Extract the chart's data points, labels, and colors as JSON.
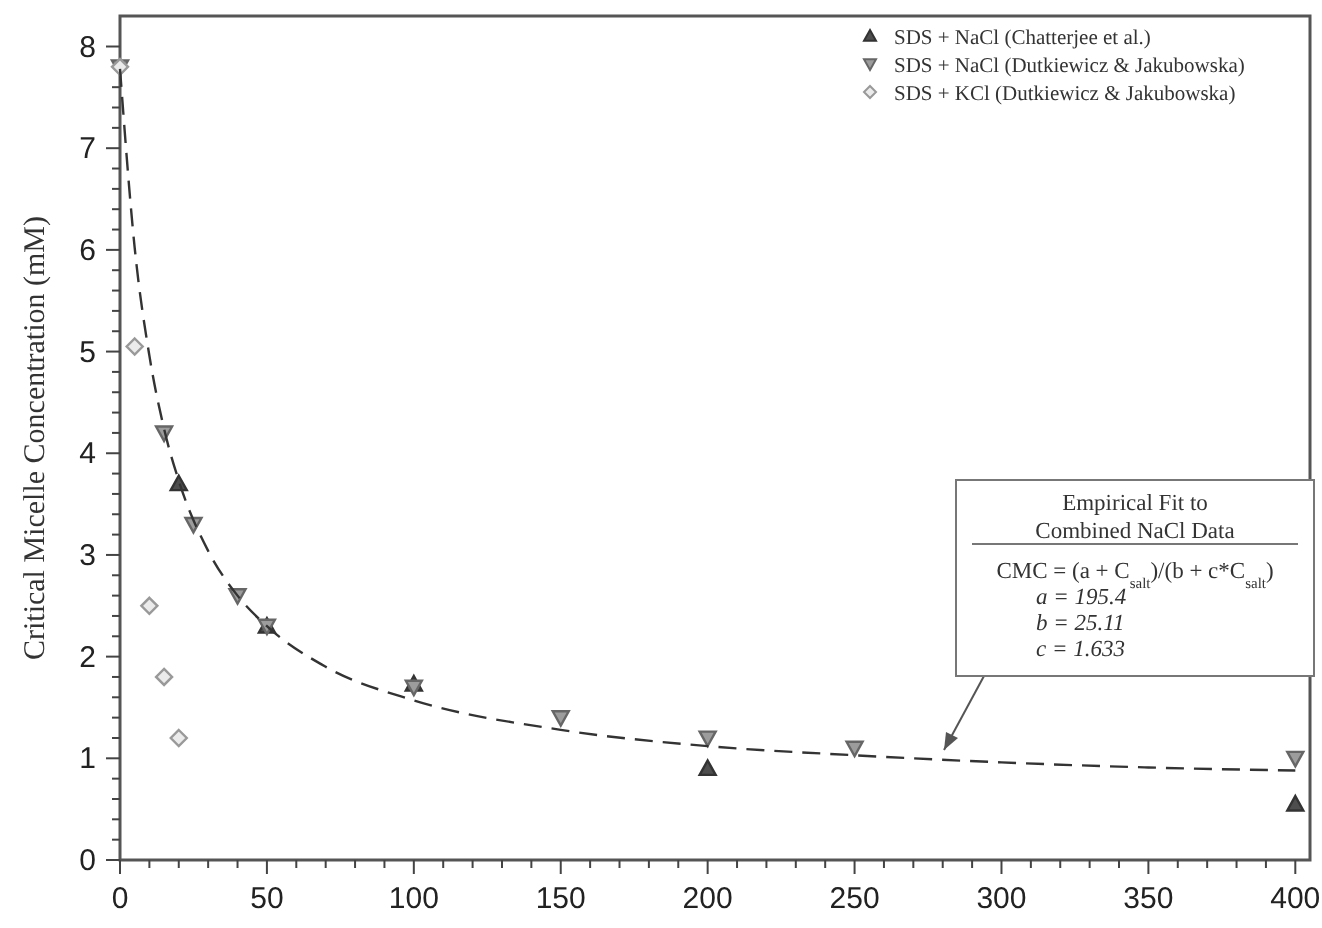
{
  "chart_data": {
    "type": "scatter",
    "ylabel": "Critical Micelle Concentration (mM)",
    "xlim": [
      0,
      405
    ],
    "ylim": [
      0,
      8.3
    ],
    "xticks": [
      0,
      {
        "value": 10,
        "label": null
      },
      {
        "value": 20,
        "label": null
      },
      {
        "value": 30,
        "label": null
      },
      {
        "value": 40,
        "label": null
      },
      50,
      {
        "value": 60,
        "label": null
      },
      {
        "value": 70,
        "label": null
      },
      {
        "value": 80,
        "label": null
      },
      {
        "value": 90,
        "label": null
      },
      100,
      {
        "value": 110,
        "label": null
      },
      {
        "value": 120,
        "label": null
      },
      {
        "value": 130,
        "label": null
      },
      {
        "value": 140,
        "label": null
      },
      150,
      {
        "value": 160,
        "label": null
      },
      {
        "value": 170,
        "label": null
      },
      {
        "value": 180,
        "label": null
      },
      {
        "value": 190,
        "label": null
      },
      200,
      {
        "value": 210,
        "label": null
      },
      {
        "value": 220,
        "label": null
      },
      {
        "value": 230,
        "label": null
      },
      {
        "value": 240,
        "label": null
      },
      250,
      {
        "value": 260,
        "label": null
      },
      {
        "value": 270,
        "label": null
      },
      {
        "value": 280,
        "label": null
      },
      {
        "value": 290,
        "label": null
      },
      300,
      {
        "value": 310,
        "label": null
      },
      {
        "value": 320,
        "label": null
      },
      {
        "value": 330,
        "label": null
      },
      {
        "value": 340,
        "label": null
      },
      350,
      {
        "value": 360,
        "label": null
      },
      {
        "value": 370,
        "label": null
      },
      {
        "value": 380,
        "label": null
      },
      {
        "value": 390,
        "label": null
      },
      400
    ],
    "yticks": [
      0,
      {
        "value": 0.2,
        "label": null
      },
      {
        "value": 0.4,
        "label": null
      },
      {
        "value": 0.6,
        "label": null
      },
      {
        "value": 0.8,
        "label": null
      },
      1,
      {
        "value": 1.2,
        "label": null
      },
      {
        "value": 1.4,
        "label": null
      },
      {
        "value": 1.6,
        "label": null
      },
      {
        "value": 1.8,
        "label": null
      },
      2,
      {
        "value": 2.2,
        "label": null
      },
      {
        "value": 2.4,
        "label": null
      },
      {
        "value": 2.6,
        "label": null
      },
      {
        "value": 2.8,
        "label": null
      },
      3,
      {
        "value": 3.2,
        "label": null
      },
      {
        "value": 3.4,
        "label": null
      },
      {
        "value": 3.6,
        "label": null
      },
      {
        "value": 3.8,
        "label": null
      },
      4,
      {
        "value": 4.2,
        "label": null
      },
      {
        "value": 4.4,
        "label": null
      },
      {
        "value": 4.6,
        "label": null
      },
      {
        "value": 4.8,
        "label": null
      },
      5,
      {
        "value": 5.2,
        "label": null
      },
      {
        "value": 5.4,
        "label": null
      },
      {
        "value": 5.6,
        "label": null
      },
      {
        "value": 5.8,
        "label": null
      },
      6,
      {
        "value": 6.2,
        "label": null
      },
      {
        "value": 6.4,
        "label": null
      },
      {
        "value": 6.6,
        "label": null
      },
      {
        "value": 6.8,
        "label": null
      },
      7,
      {
        "value": 7.2,
        "label": null
      },
      {
        "value": 7.4,
        "label": null
      },
      {
        "value": 7.6,
        "label": null
      },
      {
        "value": 7.8,
        "label": null
      },
      8
    ],
    "grid": false,
    "legend": "top right",
    "series": [
      {
        "name": "SDS + NaCl (Chatterjee et al.)",
        "marker": "triangle",
        "color": "#333333",
        "x": [
          20,
          50,
          100,
          200,
          400
        ],
        "values": [
          3.7,
          2.3,
          1.73,
          0.9,
          0.55
        ]
      },
      {
        "name": "SDS + NaCl (Dutkiewicz & Jakubowska)",
        "marker": "triangle-down",
        "color": "#666666",
        "x": [
          0,
          15,
          25,
          40,
          50,
          100,
          150,
          200,
          250,
          400
        ],
        "values": [
          7.8,
          4.2,
          3.3,
          2.6,
          2.3,
          1.7,
          1.4,
          1.2,
          1.1,
          1.0
        ]
      },
      {
        "name": "SDS + KCl (Dutkiewicz & Jakubowska)",
        "marker": "diamond",
        "color": "#999999",
        "x": [
          0,
          5,
          10,
          15,
          20
        ],
        "values": [
          7.8,
          5.05,
          2.5,
          1.8,
          1.2
        ]
      },
      {
        "type": "line",
        "marker": "none",
        "line_style": "dashed",
        "color": "#333333",
        "x": [
          0,
          5,
          10,
          15,
          20,
          30,
          40,
          50,
          70,
          100,
          150,
          200,
          250,
          300,
          350,
          400
        ],
        "values": [
          7.78,
          6.02,
          4.96,
          4.24,
          3.73,
          3.04,
          2.6,
          2.3,
          1.9,
          1.57,
          1.28,
          1.12,
          1.03,
          0.96,
          0.91,
          0.88
        ]
      }
    ],
    "annotations": [
      "Empirical Fit to\nCombined NaCl Data",
      "CMC = (a + C$_{salt}$)/(b + c*C$_{salt}$)",
      "a = 195.4",
      "b = 25.11",
      "c = 1.633"
    ]
  }
}
